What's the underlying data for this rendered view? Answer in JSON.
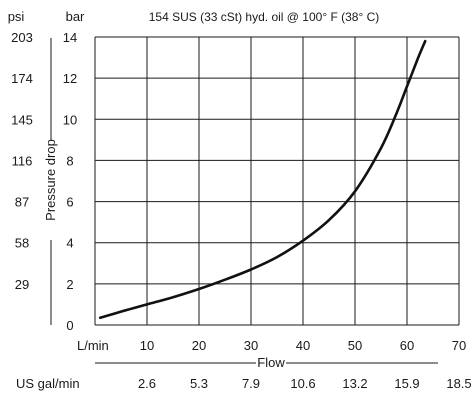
{
  "chart_data": {
    "type": "line",
    "title": "154 SUS (33 cSt) hyd. oil @ 100° F (38° C)",
    "ylabel": "Pressure drop",
    "xlabel": "Flow",
    "y_units": {
      "primary": "bar",
      "secondary": "psi"
    },
    "x_units": {
      "primary": "L/min",
      "secondary": "US gal/min"
    },
    "xlim": [
      0,
      70
    ],
    "ylim": [
      0,
      14
    ],
    "grid": true,
    "x_ticks": [
      "10",
      "20",
      "30",
      "40",
      "50",
      "60",
      "70"
    ],
    "x_ticks_secondary": [
      "2.6",
      "5.3",
      "7.9",
      "10.6",
      "13.2",
      "15.9",
      "18.5"
    ],
    "y_ticks": [
      "0",
      "2",
      "4",
      "6",
      "8",
      "10",
      "12",
      "14"
    ],
    "y_ticks_secondary": [
      "29",
      "58",
      "87",
      "116",
      "145",
      "174",
      "203"
    ],
    "series": [
      {
        "name": "",
        "x": [
          1,
          5,
          10,
          15,
          20,
          25,
          30,
          35,
          40,
          45,
          50,
          55,
          58,
          60,
          62,
          63.5
        ],
        "y": [
          0.35,
          0.65,
          1.0,
          1.35,
          1.75,
          2.2,
          2.7,
          3.3,
          4.1,
          5.1,
          6.5,
          8.6,
          10.3,
          11.6,
          12.9,
          13.8
        ]
      }
    ]
  }
}
